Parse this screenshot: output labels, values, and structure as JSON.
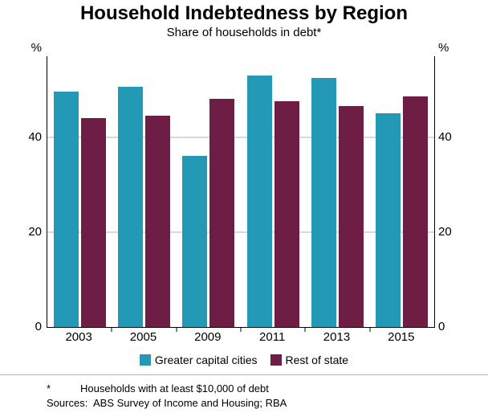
{
  "chart_data": {
    "type": "bar",
    "title": "Household Indebtedness by Region",
    "subtitle": "Share of households in debt*",
    "categories": [
      "2003",
      "2005",
      "2009",
      "2011",
      "2013",
      "2015"
    ],
    "series": [
      {
        "name": "Greater capital cities",
        "color": "#2499B5",
        "values": [
          49.5,
          50.5,
          36,
          53,
          52.5,
          45
        ]
      },
      {
        "name": "Rest of state",
        "color": "#6E1E45",
        "values": [
          44,
          44.5,
          48,
          47.5,
          46.5,
          48.5
        ]
      }
    ],
    "y_axis_unit_left": "%",
    "y_axis_unit_right": "%",
    "yticks": [
      0,
      20,
      40
    ],
    "ylim": [
      0,
      57
    ],
    "grid": true,
    "legend_position": "bottom"
  },
  "footnotes": {
    "marker": "*",
    "footnote": "Households with at least $10,000 of debt",
    "sources_label": "Sources:",
    "sources_text": "ABS Survey of Income and Housing; RBA"
  }
}
